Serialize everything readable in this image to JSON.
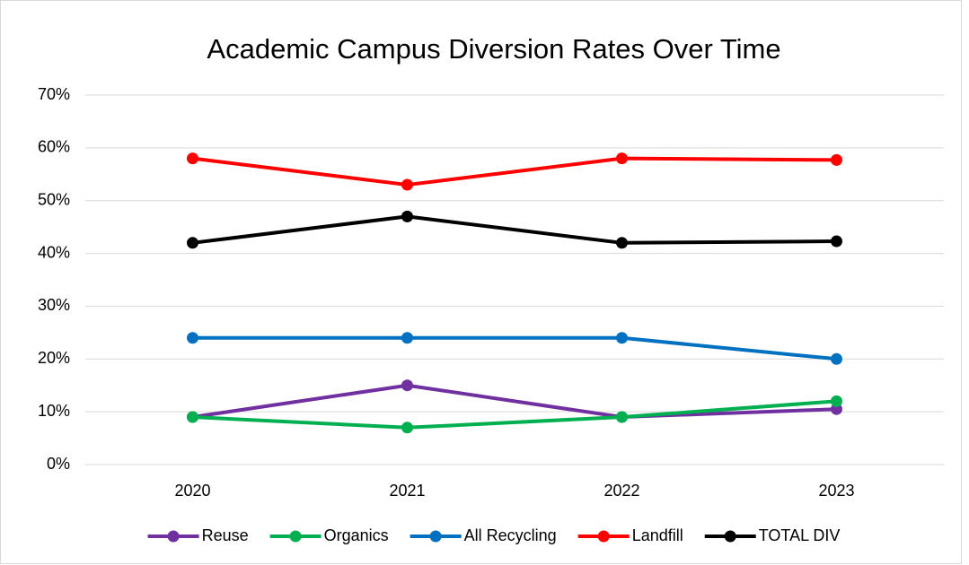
{
  "chart_data": {
    "type": "line",
    "title": "Academic Campus Diversion Rates Over Time",
    "categories": [
      "2020",
      "2021",
      "2022",
      "2023"
    ],
    "series": [
      {
        "name": "Reuse",
        "color": "#7030a0",
        "values": [
          9,
          15,
          9,
          10.5
        ]
      },
      {
        "name": "Organics",
        "color": "#00b050",
        "values": [
          9,
          7,
          9,
          12
        ]
      },
      {
        "name": "All Recycling",
        "color": "#0070c0",
        "values": [
          24,
          24,
          24,
          20
        ]
      },
      {
        "name": "Landfill",
        "color": "#ff0000",
        "values": [
          58,
          53,
          58,
          57.7
        ]
      },
      {
        "name": "TOTAL DIV",
        "color": "#000000",
        "values": [
          42,
          47,
          42,
          42.3
        ]
      }
    ],
    "ylim": [
      0,
      70
    ],
    "yticks": [
      {
        "value": 0,
        "label": "0%"
      },
      {
        "value": 10,
        "label": "10%"
      },
      {
        "value": 20,
        "label": "20%"
      },
      {
        "value": 30,
        "label": "30%"
      },
      {
        "value": 40,
        "label": "40%"
      },
      {
        "value": 50,
        "label": "50%"
      },
      {
        "value": 60,
        "label": "60%"
      },
      {
        "value": 70,
        "label": "70%"
      }
    ],
    "grid": true,
    "legend": "bottom"
  }
}
